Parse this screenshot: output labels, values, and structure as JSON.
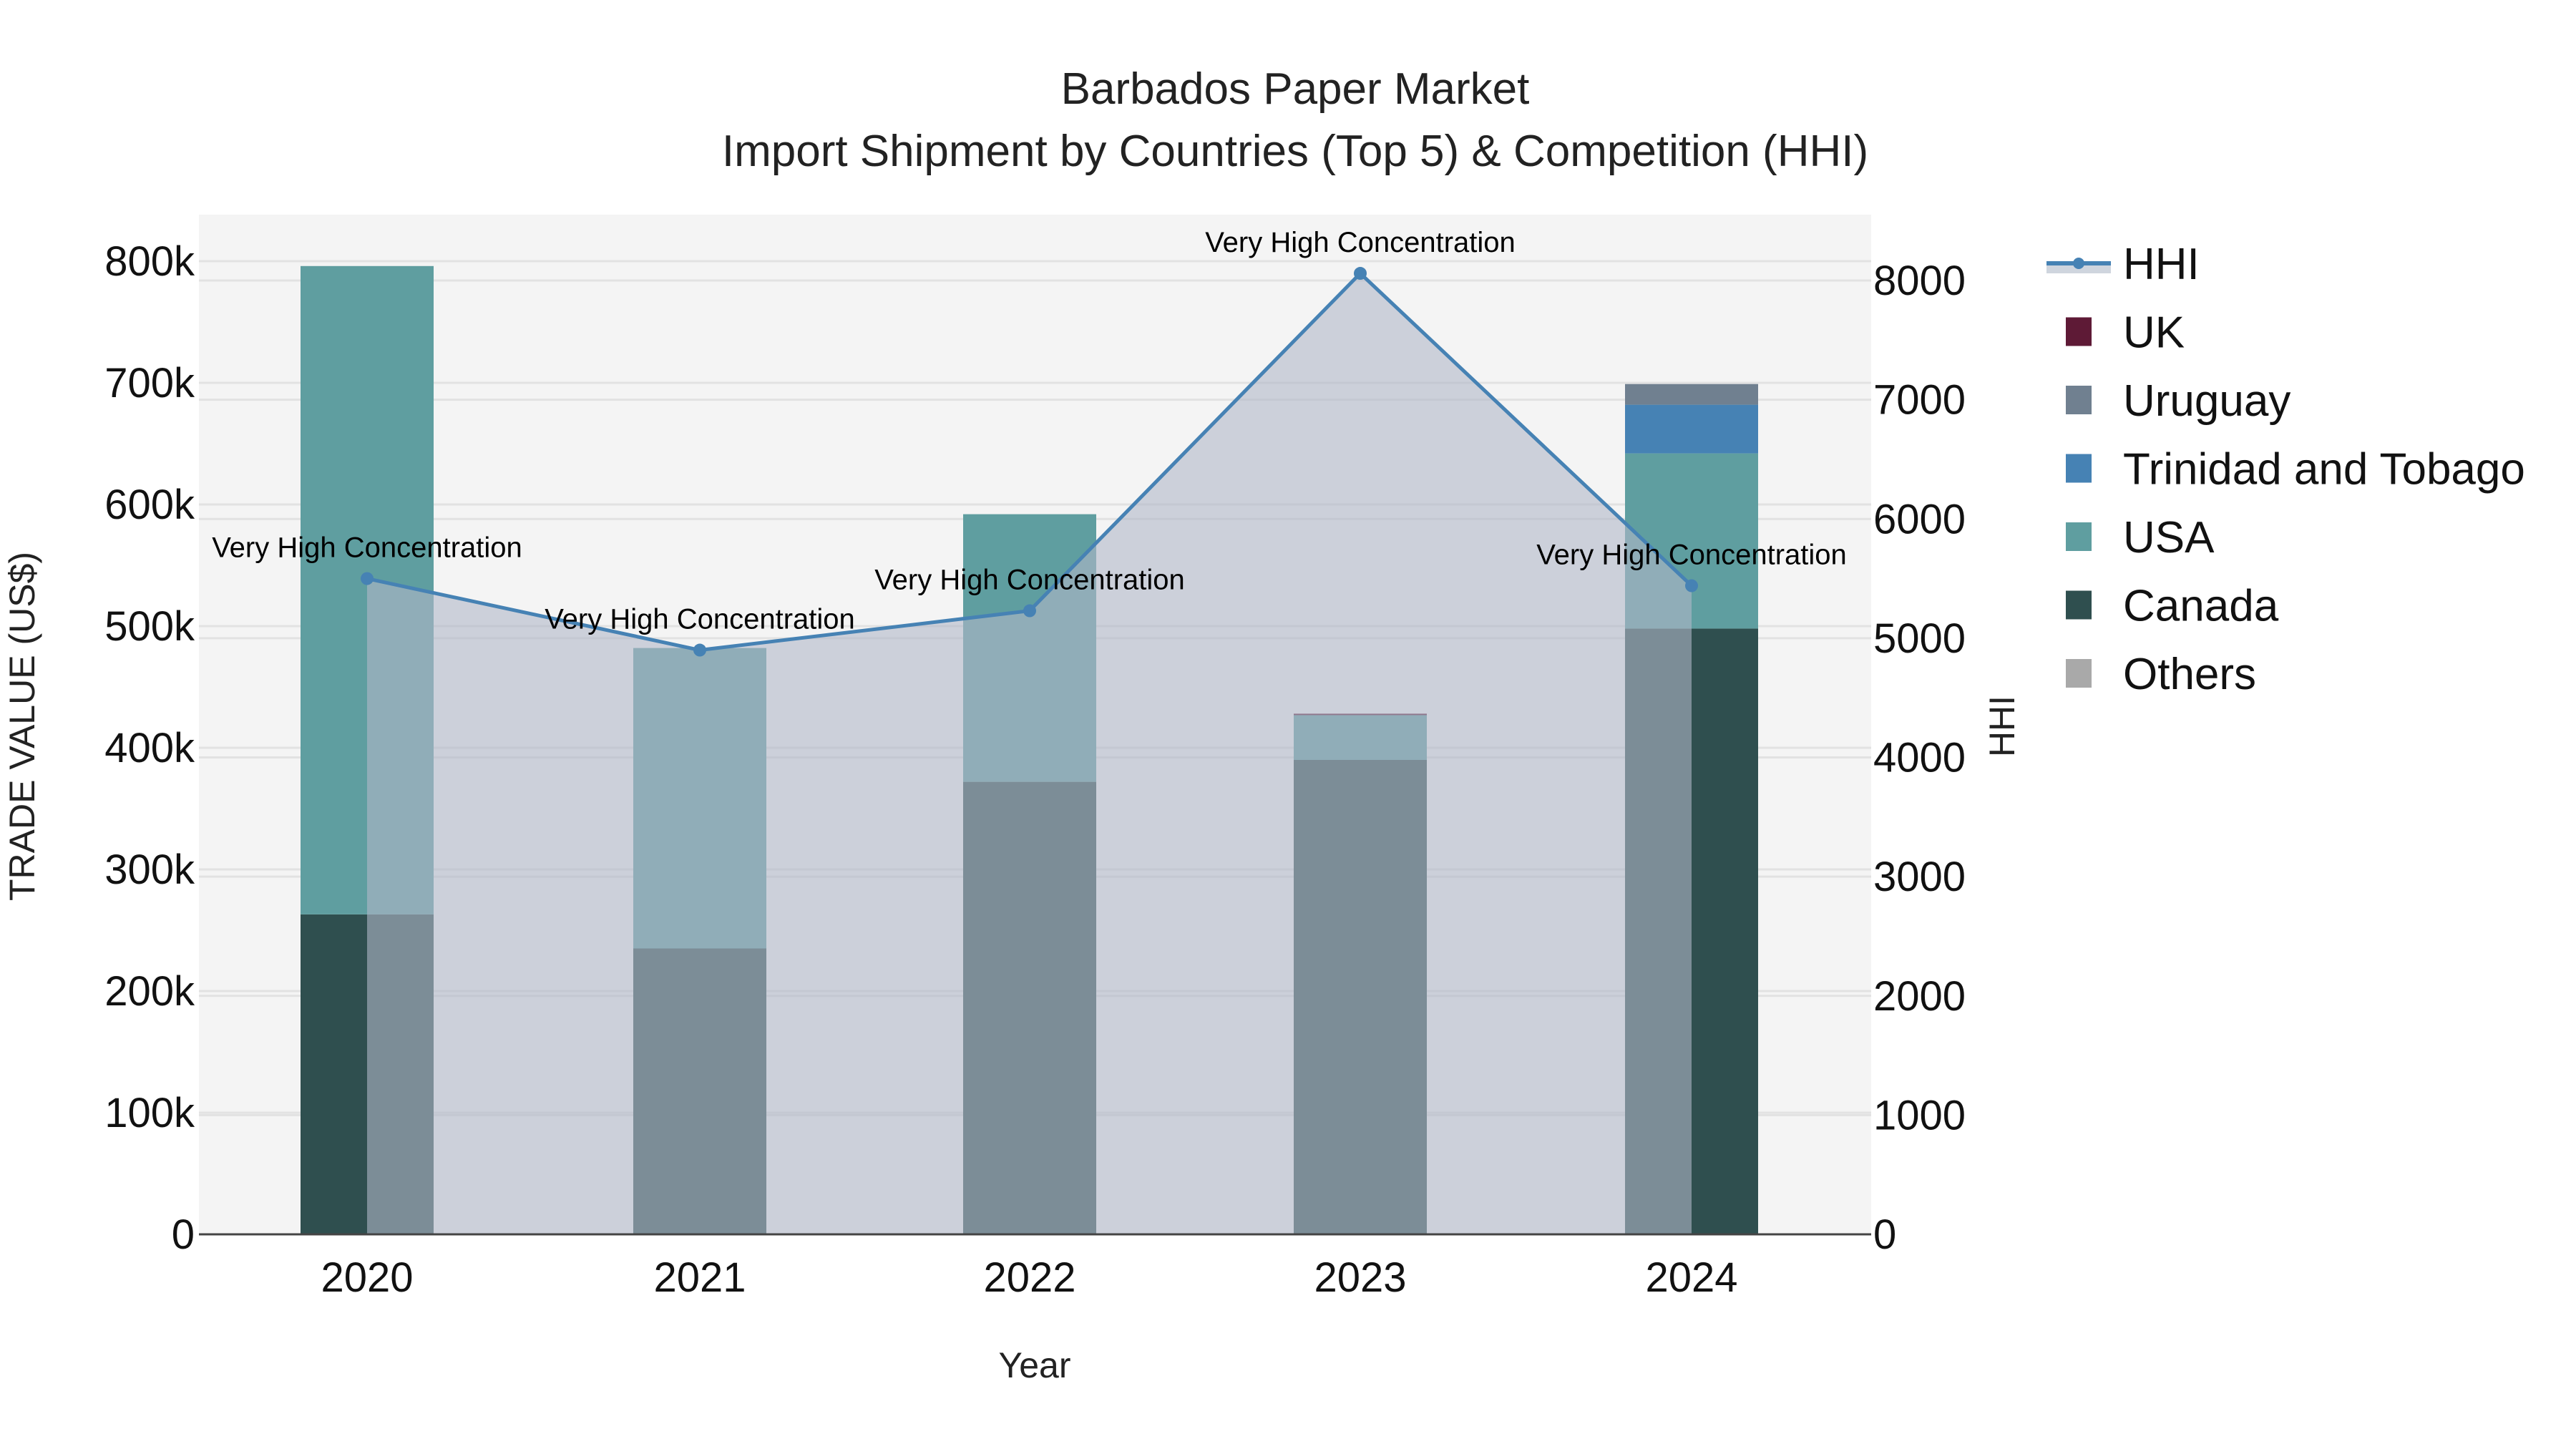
{
  "chart_data": {
    "type": "bar",
    "stacked": true,
    "title": "Barbados Paper Market",
    "subtitle": "Import Shipment by Countries (Top 5) & Competition (HHI)",
    "xlabel": "Year",
    "ylabel": "TRADE VALUE (US$)",
    "y2label": "HHI",
    "categories": [
      "2020",
      "2021",
      "2022",
      "2023",
      "2024"
    ],
    "ylim": [
      0,
      800000
    ],
    "y2lim": [
      0,
      8000
    ],
    "yticks": [
      0,
      100000,
      200000,
      300000,
      400000,
      500000,
      600000,
      700000,
      800000
    ],
    "ytick_labels": [
      "0",
      "100k",
      "200k",
      "300k",
      "400k",
      "500k",
      "600k",
      "700k",
      "800k"
    ],
    "y2ticks": [
      0,
      1000,
      2000,
      3000,
      4000,
      5000,
      6000,
      7000,
      8000
    ],
    "y2tick_labels": [
      "0",
      "1000",
      "2000",
      "3000",
      "4000",
      "5000",
      "6000",
      "7000",
      "8000"
    ],
    "grid": true,
    "legend_position": "right",
    "series": [
      {
        "name": "Canada",
        "color": "#2f4f4f",
        "values": [
          263000,
          235000,
          372000,
          390000,
          498000
        ]
      },
      {
        "name": "USA",
        "color": "#5f9ea0",
        "values": [
          533000,
          247000,
          220000,
          37000,
          144000
        ]
      },
      {
        "name": "Trinidad and Tobago",
        "color": "#4682b4",
        "values": [
          0,
          0,
          0,
          0,
          40000
        ]
      },
      {
        "name": "Uruguay",
        "color": "#708090",
        "values": [
          0,
          0,
          0,
          0,
          17000
        ]
      },
      {
        "name": "UK",
        "color": "#5e1a36",
        "values": [
          0,
          0,
          0,
          1000,
          0
        ]
      },
      {
        "name": "Others",
        "color": "#a9a9a9",
        "values": [
          0,
          0,
          0,
          0,
          0
        ]
      }
    ],
    "line_series": {
      "name": "HHI",
      "axis": "y2",
      "color": "#4682b4",
      "fill_color": "rgba(176,184,200,0.6)",
      "values": [
        5500,
        4900,
        5230,
        8060,
        5440
      ],
      "annotations": [
        "Very High Concentration",
        "Very High Concentration",
        "Very High Concentration",
        "Very High Concentration",
        "Very High Concentration"
      ]
    },
    "legend": [
      {
        "name": "HHI",
        "type": "line",
        "color": "#4682b4"
      },
      {
        "name": "UK",
        "type": "box",
        "color": "#5e1a36"
      },
      {
        "name": "Uruguay",
        "type": "box",
        "color": "#708090"
      },
      {
        "name": "Trinidad and Tobago",
        "type": "box",
        "color": "#4682b4"
      },
      {
        "name": "USA",
        "type": "box",
        "color": "#5f9ea0"
      },
      {
        "name": "Canada",
        "type": "box",
        "color": "#2f4f4f"
      },
      {
        "name": "Others",
        "type": "box",
        "color": "#a9a9a9"
      }
    ]
  },
  "colors": {
    "plot_bg": "#f4f4f4",
    "grid": "#e2e2e2",
    "axis_line": "#444444"
  }
}
